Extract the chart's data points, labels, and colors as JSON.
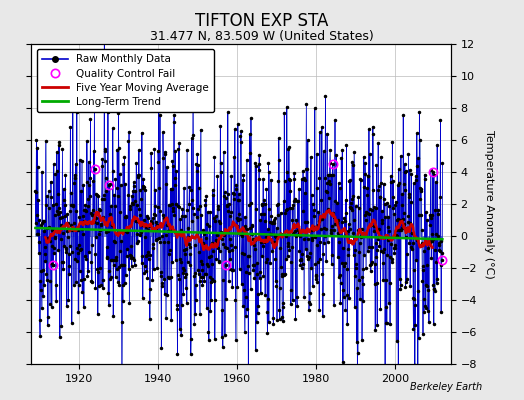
{
  "title": "TIFTON EXP STA",
  "subtitle": "31.477 N, 83.509 W (United States)",
  "credit": "Berkeley Earth",
  "ylabel": "Temperature Anomaly (°C)",
  "ylim": [
    -8,
    12
  ],
  "yticks": [
    -8,
    -6,
    -4,
    -2,
    0,
    2,
    4,
    6,
    8,
    10,
    12
  ],
  "xlim": [
    1908,
    2014
  ],
  "xticks": [
    1920,
    1940,
    1960,
    1980,
    2000
  ],
  "start_year": 1909,
  "end_year": 2012,
  "background_color": "#e8e8e8",
  "plot_bg_color": "#ffffff",
  "bar_color": "#6680cc",
  "line_color": "#0000cc",
  "marker_color": "#000000",
  "moving_avg_color": "#cc0000",
  "trend_color": "#00aa00",
  "qc_fail_color": "#ff00ff",
  "grid_color": "#bbbbbb",
  "title_fontsize": 12,
  "subtitle_fontsize": 9,
  "label_fontsize": 8,
  "tick_fontsize": 8
}
